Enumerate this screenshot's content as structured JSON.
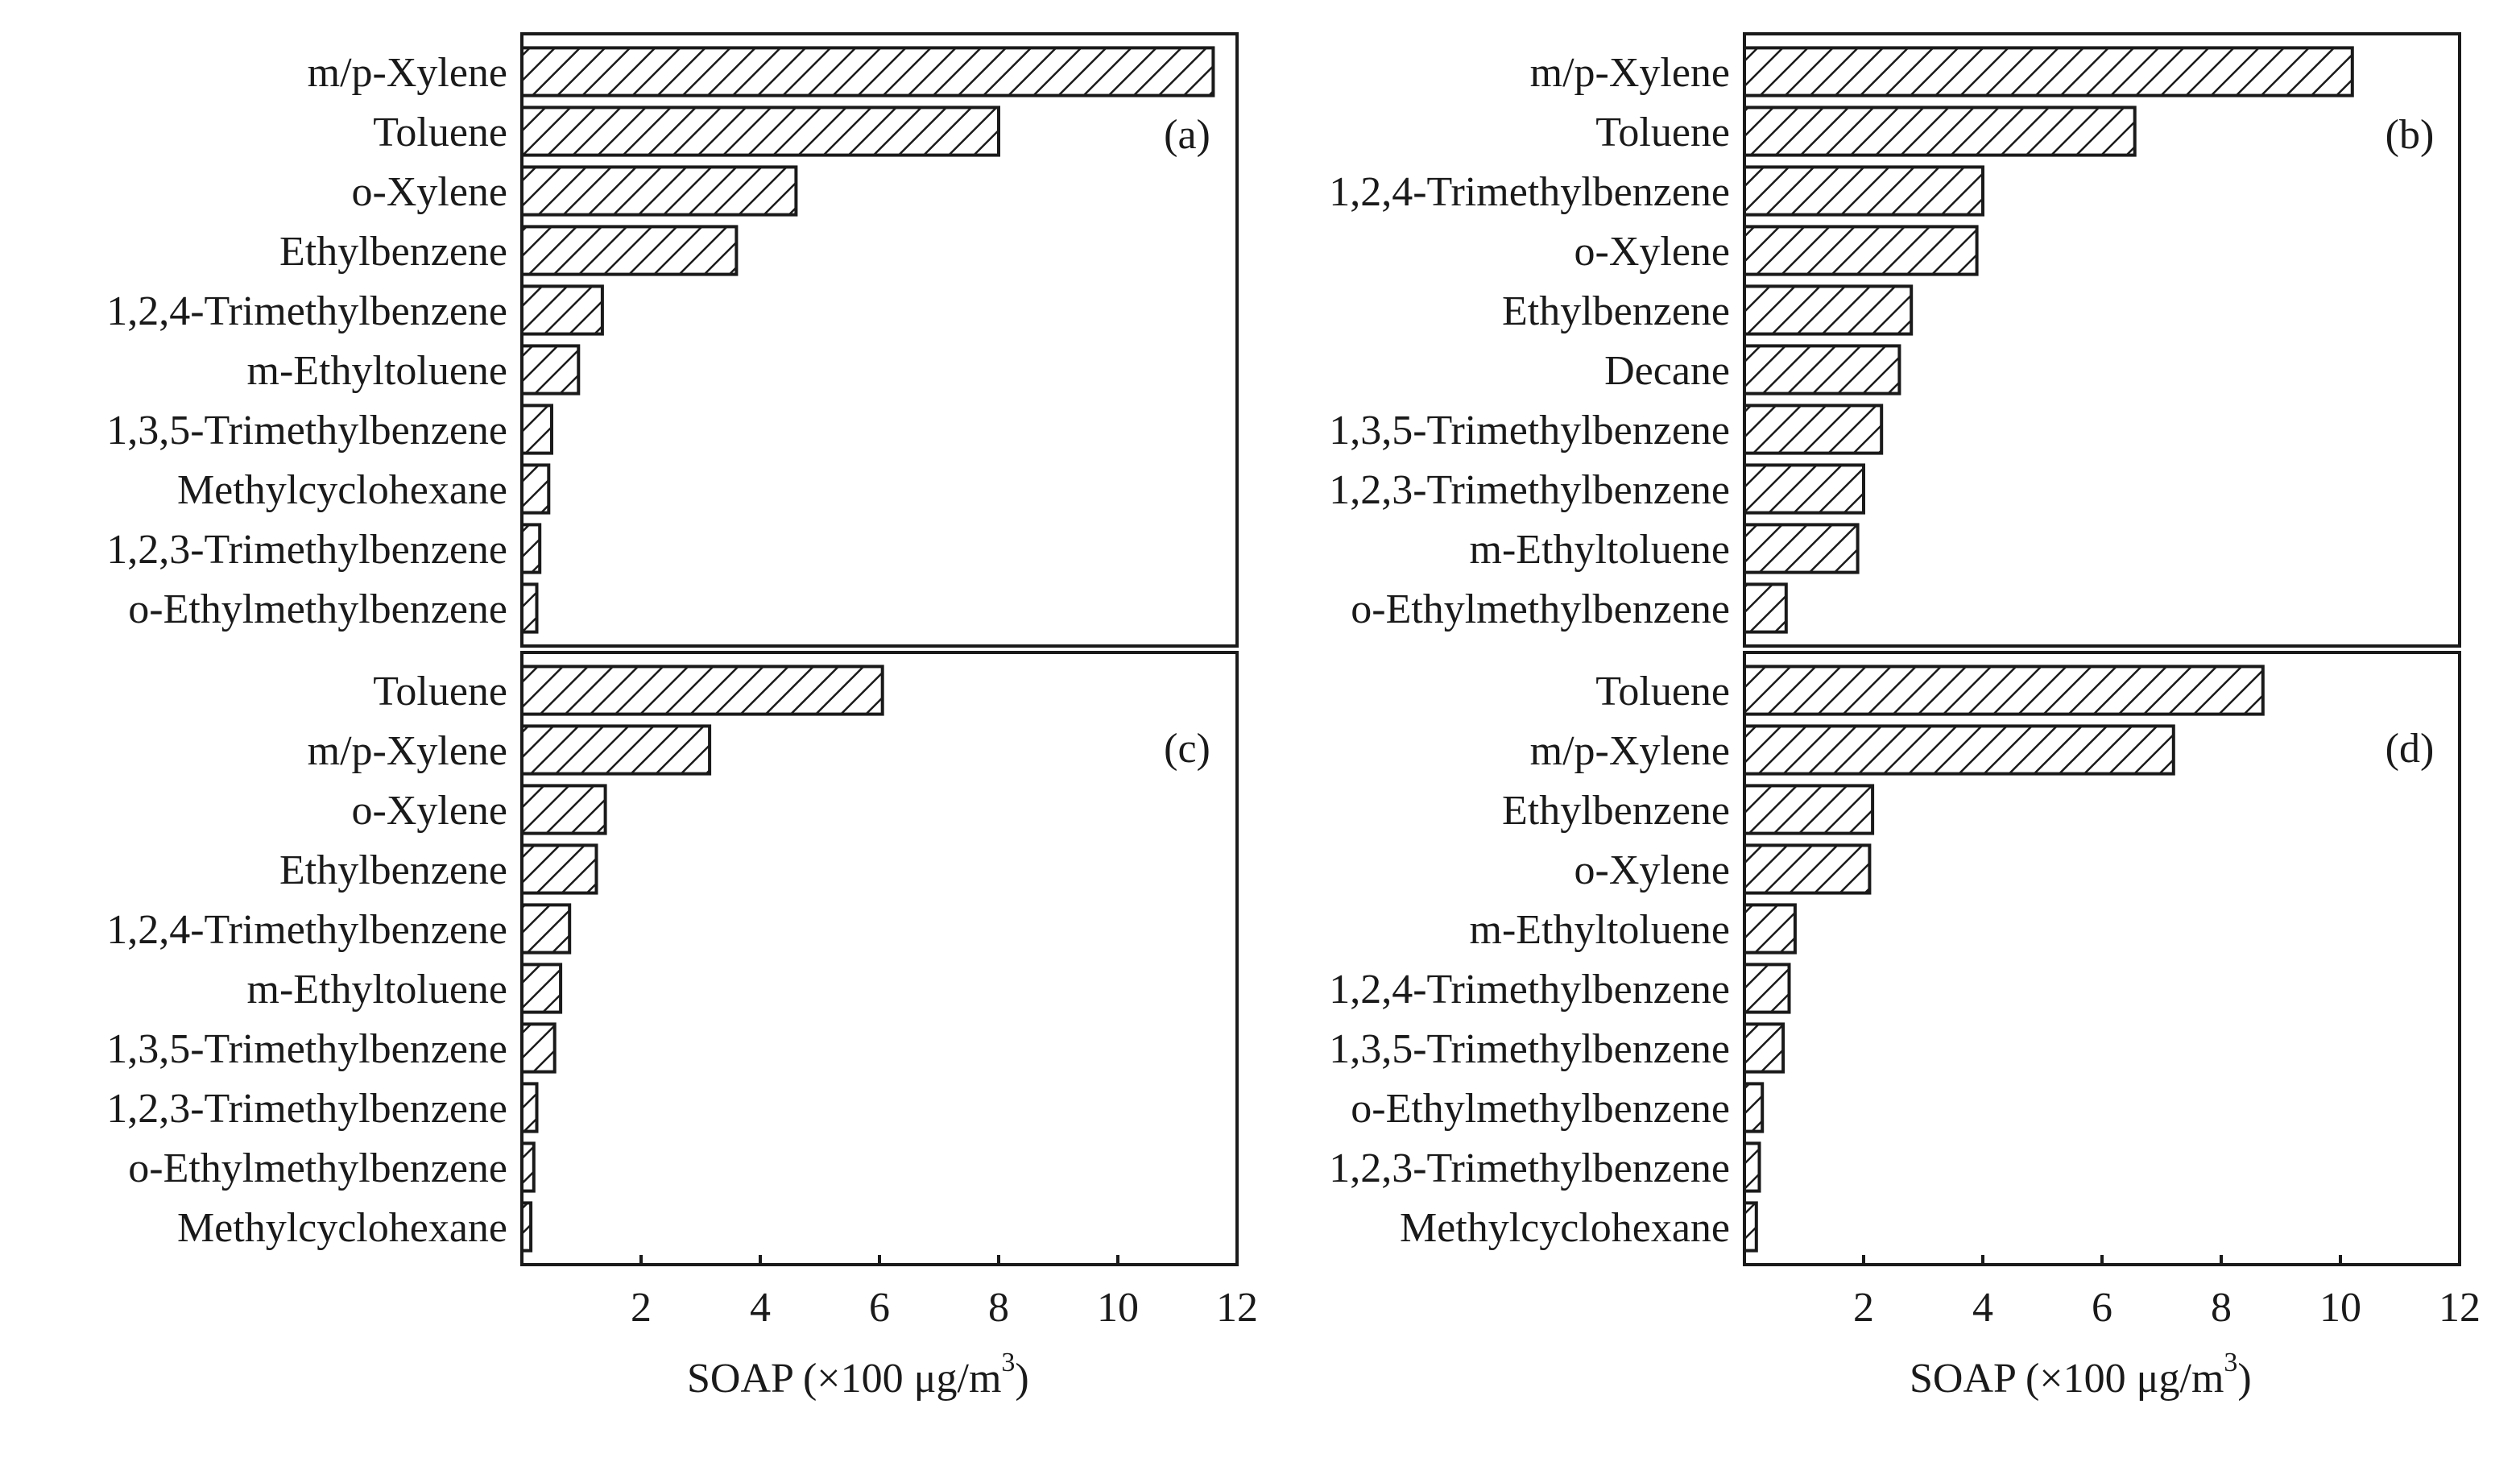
{
  "chart_data": [
    {
      "type": "bar",
      "orientation": "horizontal",
      "panel": "(a)",
      "categories": [
        "m/p-Xylene",
        "Toluene",
        "o-Xylene",
        "Ethylbenzene",
        "1,2,4-Trimethylbenzene",
        "m-Ethyltoluene",
        "1,3,5-Trimethylbenzene",
        "Methylcyclohexane",
        "1,2,3-Trimethylbenzene",
        "o-Ethylmethylbenzene"
      ],
      "values": [
        11.6,
        8.0,
        4.6,
        3.6,
        1.35,
        0.95,
        0.5,
        0.45,
        0.3,
        0.25
      ],
      "xlim": [
        0,
        12
      ],
      "xticks": [
        2,
        4,
        6,
        8,
        10,
        12
      ],
      "show_xaxis": false,
      "xlabel": "",
      "grid": false,
      "pattern": "diagonal-hatch"
    },
    {
      "type": "bar",
      "orientation": "horizontal",
      "panel": "(b)",
      "categories": [
        "m/p-Xylene",
        "Toluene",
        "1,2,4-Trimethylbenzene",
        "o-Xylene",
        "Ethylbenzene",
        "Decane",
        "1,3,5-Trimethylbenzene",
        "1,2,3-Trimethylbenzene",
        "m-Ethyltoluene",
        "o-Ethylmethylbenzene"
      ],
      "values": [
        10.2,
        6.55,
        4.0,
        3.9,
        2.8,
        2.6,
        2.3,
        2.0,
        1.9,
        0.7
      ],
      "xlim": [
        0,
        12
      ],
      "xticks": [
        2,
        4,
        6,
        8,
        10,
        12
      ],
      "show_xaxis": false,
      "xlabel": "",
      "grid": false,
      "pattern": "diagonal-hatch"
    },
    {
      "type": "bar",
      "orientation": "horizontal",
      "panel": "(c)",
      "categories": [
        "Toluene",
        "m/p-Xylene",
        "o-Xylene",
        "Ethylbenzene",
        "1,2,4-Trimethylbenzene",
        "m-Ethyltoluene",
        "1,3,5-Trimethylbenzene",
        "1,2,3-Trimethylbenzene",
        "o-Ethylmethylbenzene",
        "Methylcyclohexane"
      ],
      "values": [
        6.05,
        3.15,
        1.4,
        1.25,
        0.8,
        0.65,
        0.55,
        0.25,
        0.2,
        0.15
      ],
      "xlim": [
        0,
        12
      ],
      "xticks": [
        2,
        4,
        6,
        8,
        10,
        12
      ],
      "show_xaxis": true,
      "xlabel": "SOAP (×100 μg/m",
      "xlabel_sup": "3",
      "xlabel_close": ")",
      "grid": false,
      "pattern": "diagonal-hatch"
    },
    {
      "type": "bar",
      "orientation": "horizontal",
      "panel": "(d)",
      "categories": [
        "Toluene",
        "m/p-Xylene",
        "Ethylbenzene",
        "o-Xylene",
        "m-Ethyltoluene",
        "1,2,4-Trimethylbenzene",
        "1,3,5-Trimethylbenzene",
        "o-Ethylmethylbenzene",
        "1,2,3-Trimethylbenzene",
        "Methylcyclohexane"
      ],
      "values": [
        8.7,
        7.2,
        2.15,
        2.1,
        0.85,
        0.75,
        0.65,
        0.3,
        0.25,
        0.2
      ],
      "xlim": [
        0,
        12
      ],
      "xticks": [
        2,
        4,
        6,
        8,
        10,
        12
      ],
      "show_xaxis": true,
      "xlabel": "SOAP (×100 μg/m",
      "xlabel_sup": "3",
      "xlabel_close": ")",
      "grid": false,
      "pattern": "diagonal-hatch"
    }
  ]
}
